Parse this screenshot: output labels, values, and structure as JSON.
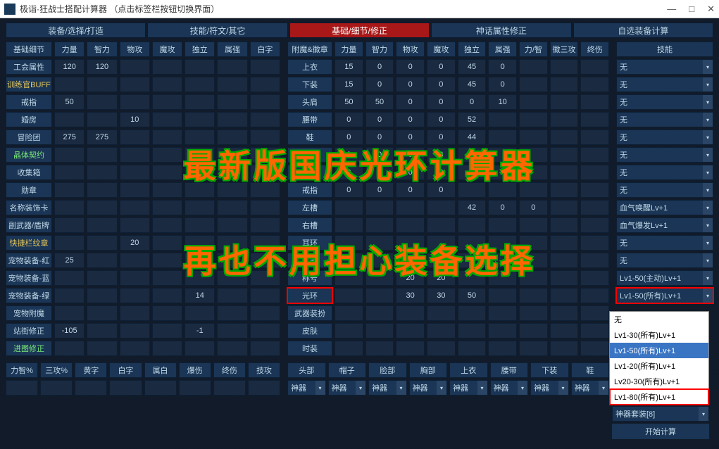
{
  "window": {
    "title": "极诣·狂战士搭配计算器  （点击标签栏按钮切换界面）",
    "min": "—",
    "max": "□",
    "close": "✕"
  },
  "tabs": [
    "装备/选择/打造",
    "技能/符文/其它",
    "基础/细节/修正",
    "神话属性修正",
    "自选装备计算"
  ],
  "activeTab": 2,
  "left": {
    "headers": [
      "基础细节",
      "力量",
      "智力",
      "物攻",
      "魔攻",
      "独立",
      "属强",
      "白字"
    ],
    "rows": [
      {
        "label": "工会属性",
        "cls": "",
        "vals": [
          "120",
          "120",
          "",
          "",
          "",
          "",
          ""
        ]
      },
      {
        "label": "训练官BUFF",
        "cls": "yellow-text",
        "vals": [
          "",
          "",
          "",
          "",
          "",
          "",
          ""
        ]
      },
      {
        "label": "戒指",
        "cls": "",
        "vals": [
          "50",
          "",
          "",
          "",
          "",
          "",
          ""
        ]
      },
      {
        "label": "婚房",
        "cls": "",
        "vals": [
          "",
          "",
          "10",
          "",
          "",
          "",
          ""
        ]
      },
      {
        "label": "冒险团",
        "cls": "",
        "vals": [
          "275",
          "275",
          "",
          "",
          "",
          "",
          ""
        ]
      },
      {
        "label": "晶体契约",
        "cls": "green-text",
        "vals": [
          "",
          "",
          "",
          "",
          "",
          "",
          ""
        ]
      },
      {
        "label": "收集箱",
        "cls": "",
        "vals": [
          "",
          "",
          "",
          "",
          "",
          "",
          ""
        ]
      },
      {
        "label": "勋章",
        "cls": "",
        "vals": [
          "",
          "",
          "",
          "",
          "",
          "",
          ""
        ]
      },
      {
        "label": "名称装饰卡",
        "cls": "",
        "vals": [
          "",
          "",
          "",
          "",
          "",
          "",
          ""
        ]
      },
      {
        "label": "副武器/盾牌",
        "cls": "",
        "vals": [
          "",
          "",
          "",
          "",
          "",
          "",
          ""
        ]
      },
      {
        "label": "快捷栏纹章",
        "cls": "yellow-text",
        "vals": [
          "",
          "",
          "20",
          "",
          "",
          "",
          ""
        ]
      },
      {
        "label": "宠物装备-红",
        "cls": "",
        "vals": [
          "25",
          "",
          "",
          "",
          "",
          "",
          ""
        ]
      },
      {
        "label": "宠物装备-蓝",
        "cls": "",
        "vals": [
          "",
          "",
          "",
          "",
          "",
          "",
          ""
        ]
      },
      {
        "label": "宠物装备-绿",
        "cls": "",
        "vals": [
          "",
          "",
          "",
          "",
          "14",
          "",
          ""
        ]
      },
      {
        "label": "宠物附魔",
        "cls": "",
        "vals": [
          "",
          "",
          "",
          "",
          "",
          "",
          ""
        ]
      },
      {
        "label": "站街修正",
        "cls": "",
        "vals": [
          "-105",
          "",
          "",
          "",
          "-1",
          "",
          ""
        ]
      },
      {
        "label": "进图修正",
        "cls": "green-text",
        "vals": [
          "",
          "",
          "",
          "",
          "",
          "",
          ""
        ]
      }
    ],
    "bottom_headers": [
      "力智%",
      "三攻%",
      "黄字",
      "白字",
      "属白",
      "爆伤",
      "终伤",
      "技攻"
    ]
  },
  "mid": {
    "headers": [
      "附魔&徽章",
      "力量",
      "智力",
      "物攻",
      "魔攻",
      "独立",
      "属强",
      "力/智",
      "徽三攻",
      "终伤"
    ],
    "rows": [
      {
        "label": "上衣",
        "vals": [
          "15",
          "0",
          "0",
          "0",
          "45",
          "0",
          "",
          "",
          ""
        ]
      },
      {
        "label": "下装",
        "vals": [
          "15",
          "0",
          "0",
          "0",
          "45",
          "0",
          "",
          "",
          ""
        ]
      },
      {
        "label": "头肩",
        "vals": [
          "50",
          "50",
          "0",
          "0",
          "0",
          "10",
          "",
          "",
          ""
        ]
      },
      {
        "label": "腰带",
        "vals": [
          "0",
          "0",
          "0",
          "0",
          "52",
          "",
          "",
          "",
          ""
        ]
      },
      {
        "label": "鞋",
        "vals": [
          "0",
          "0",
          "0",
          "0",
          "44",
          "",
          "",
          "",
          ""
        ]
      },
      {
        "label": "手镯",
        "vals": [
          "0",
          "0",
          "0",
          "0",
          "",
          "",
          "",
          "",
          ""
        ]
      },
      {
        "label": "项链",
        "vals": [
          "0",
          "0",
          "0",
          "0",
          "",
          "",
          "",
          "",
          ""
        ]
      },
      {
        "label": "戒指",
        "vals": [
          "0",
          "0",
          "0",
          "0",
          "",
          "",
          "",
          "",
          ""
        ]
      },
      {
        "label": "左槽",
        "vals": [
          "",
          "",
          "",
          "",
          "42",
          "0",
          "0",
          "",
          ""
        ]
      },
      {
        "label": "右槽",
        "vals": [
          "",
          "",
          "",
          "",
          "",
          "",
          "",
          "",
          ""
        ]
      },
      {
        "label": "耳环",
        "vals": [
          "",
          "",
          "",
          "",
          "",
          "",
          "",
          "",
          ""
        ]
      },
      {
        "label": "武器",
        "vals": [
          "",
          "",
          "",
          "",
          "",
          "",
          "",
          "",
          ""
        ]
      },
      {
        "label": "称号",
        "vals": [
          "",
          "",
          "20",
          "20",
          "",
          "",
          "",
          "",
          ""
        ]
      },
      {
        "label": "光环",
        "hl": true,
        "vals": [
          "",
          "",
          "30",
          "30",
          "50",
          "",
          "",
          "",
          ""
        ]
      },
      {
        "label": "武器装扮",
        "vals": [
          "",
          "",
          "",
          "",
          "",
          "",
          "",
          "",
          ""
        ]
      },
      {
        "label": "皮肤",
        "vals": [
          "",
          "",
          "",
          "",
          "",
          "",
          "",
          "",
          ""
        ]
      },
      {
        "label": "时装",
        "vals": [
          "",
          "",
          "",
          "",
          "",
          "",
          "",
          "",
          ""
        ]
      }
    ],
    "bottom_headers": [
      "头部",
      "帽子",
      "脸部",
      "胸部",
      "上衣",
      "腰带",
      "下装",
      "鞋"
    ],
    "bottom_vals": [
      "神器",
      "神器",
      "神器",
      "神器",
      "神器",
      "神器",
      "神器",
      "神器"
    ]
  },
  "right": {
    "header": "技能",
    "drops": [
      "无",
      "无",
      "无",
      "无",
      "无",
      "无",
      "无",
      "无",
      "血气唤醒Lv+1",
      "血气爆发Lv+1",
      "无",
      "无",
      "Lv1-50(主动)Lv+1",
      "Lv1-50(所有)Lv+1"
    ],
    "highlight_index": 13,
    "bottom_drop": "神器套装[8]",
    "calc_btn": "开始计算"
  },
  "popup": {
    "options": [
      "无",
      "Lv1-30(所有)Lv+1",
      "Lv1-50(所有)Lv+1",
      "Lv1-20(所有)Lv+1",
      "Lv20-30(所有)Lv+1",
      "Lv1-80(所有)Lv+1"
    ],
    "selected": 2,
    "highlight_last": true
  },
  "overlay": {
    "line1": "最新版国庆光环计算器",
    "line2": "再也不用担心装备选择"
  }
}
